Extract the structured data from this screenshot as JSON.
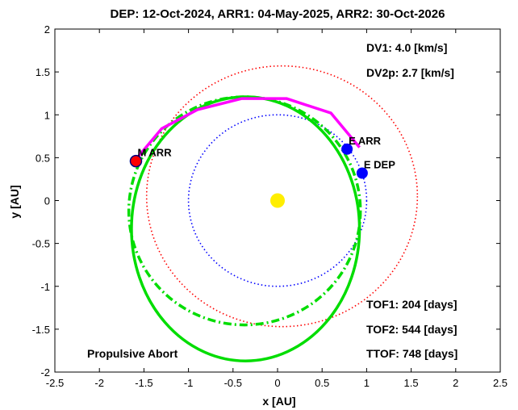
{
  "chart_data": {
    "type": "scatter",
    "title": "DEP: 12-Oct-2024, ARR1: 04-May-2025, ARR2: 30-Oct-2026",
    "xlabel": "x [AU]",
    "ylabel": "y [AU]",
    "xlim": [
      -2.5,
      2.5
    ],
    "ylim": [
      -2,
      2
    ],
    "xticks": [
      -2.5,
      -2,
      -1.5,
      -1,
      -0.5,
      0,
      0.5,
      1,
      1.5,
      2,
      2.5
    ],
    "yticks": [
      -2,
      -1.5,
      -1,
      -0.5,
      0,
      0.5,
      1,
      1.5,
      2
    ],
    "xtick_labels": [
      "-2.5",
      "-2",
      "-1.5",
      "-1",
      "-0.5",
      "0",
      "0.5",
      "1",
      "1.5",
      "2",
      "2.5"
    ],
    "ytick_labels": [
      "-2",
      "-1.5",
      "-1",
      "-0.5",
      "0",
      "0.5",
      "1",
      "1.5",
      "2"
    ],
    "grid": false,
    "annotations": {
      "dv1": "DV1:  4.0 [km/s]",
      "dv2p": "DV2p:  2.7 [km/s]",
      "tof1": "TOF1:  204 [days]",
      "tof2": "TOF2:  544 [days]",
      "ttof": "TTOF:  748 [days]",
      "mode": "Propulsive Abort"
    },
    "orbits": [
      {
        "style": "earth-orbit",
        "color": "#0000ff",
        "dash": "dotted",
        "cx": 0,
        "cy": 0,
        "rx": 1.0,
        "ry": 1.0,
        "rot": 0
      },
      {
        "style": "mars-orbit",
        "color": "#ff0000",
        "dash": "dotted",
        "cx": 0.05,
        "cy": 0.05,
        "rx": 1.52,
        "ry": 1.52,
        "rot": 0
      },
      {
        "style": "return-orbit",
        "color": "#00dd00",
        "dash": "solid",
        "cx": -0.36,
        "cy": -0.33,
        "rx": 1.28,
        "ry": 1.54,
        "rot": 0
      },
      {
        "style": "transfer-orbit",
        "color": "#00dd00",
        "dash": "dashdot",
        "cx": -0.37,
        "cy": -0.12,
        "rx": 1.3,
        "ry": 1.33,
        "rot": 0
      }
    ],
    "arcs": [
      {
        "style": "outbound-arc",
        "color": "#ff00ff",
        "points": [
          [
            0.92,
            0.62
          ],
          [
            0.6,
            1.02
          ],
          [
            0.1,
            1.19
          ],
          [
            -0.4,
            1.19
          ],
          [
            -0.9,
            1.06
          ],
          [
            -1.3,
            0.84
          ],
          [
            -1.6,
            0.47
          ]
        ]
      }
    ],
    "markers": [
      {
        "label": "",
        "x": 0,
        "y": 0,
        "color": "#ffee00",
        "r": 9
      },
      {
        "label": "M ARR",
        "x": -1.59,
        "y": 0.46,
        "color": "#ff0000",
        "r": 7
      },
      {
        "label": "E ARR",
        "x": 0.78,
        "y": 0.6,
        "color": "#0000ff",
        "r": 7
      },
      {
        "label": "E DEP",
        "x": 0.95,
        "y": 0.32,
        "color": "#0000ff",
        "r": 7
      }
    ]
  }
}
